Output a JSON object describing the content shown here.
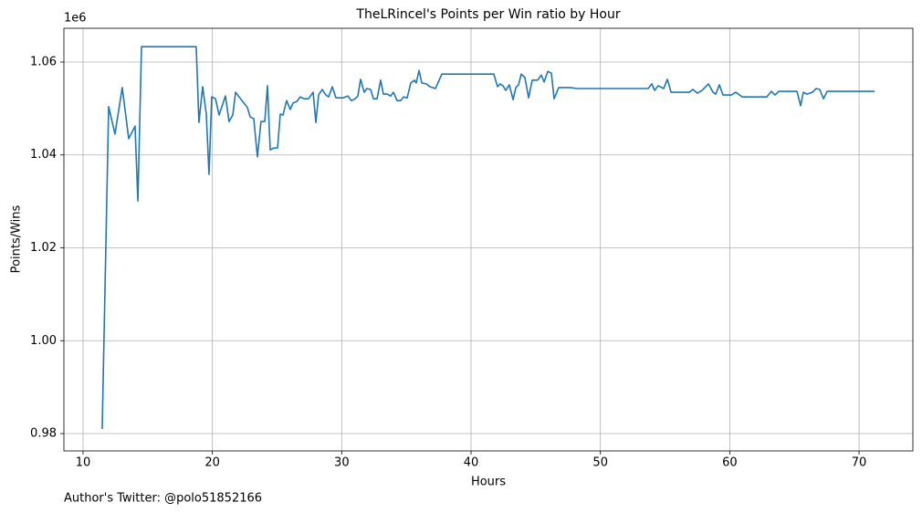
{
  "chart_data": {
    "type": "line",
    "title": "TheLRincel's Points per Win ratio by Hour",
    "x_label": "Hours",
    "y_label": "Points/Wins",
    "y_offset_label": "1e6",
    "footer": "Author's Twitter: @polo51852166",
    "color": "#1f77b4",
    "grid": true,
    "xlim": [
      8.52,
      74.16
    ],
    "ylim": [
      0.97627,
      1.06727
    ],
    "xticks": [
      10,
      20,
      30,
      40,
      50,
      60,
      70
    ],
    "yticks": [
      0.98,
      {
        "value": 1,
        "label": "1.00"
      },
      1.02,
      1.04,
      1.06
    ],
    "x": [
      11.48,
      11.98,
      12.47,
      13.03,
      13.53,
      14.02,
      14.24,
      14.52,
      18.75,
      18.96,
      19.25,
      19.53,
      19.74,
      19.95,
      20.24,
      20.52,
      21.01,
      21.29,
      21.58,
      21.79,
      22.71,
      22.92,
      23.2,
      23.48,
      23.76,
      24.05,
      24.26,
      24.47,
      24.75,
      25.04,
      25.25,
      25.46,
      25.74,
      26.02,
      26.24,
      26.52,
      26.8,
      27.08,
      27.43,
      27.79,
      28.0,
      28.21,
      28.49,
      28.78,
      28.99,
      29.27,
      29.55,
      30.12,
      30.47,
      30.75,
      31.04,
      31.25,
      31.46,
      31.74,
      31.95,
      32.24,
      32.45,
      32.73,
      33.01,
      33.22,
      33.51,
      33.79,
      34.0,
      34.28,
      34.56,
      34.78,
      35.06,
      35.34,
      35.62,
      35.76,
      35.98,
      36.19,
      36.54,
      36.82,
      37.25,
      37.74,
      41.76,
      42.05,
      42.26,
      42.47,
      42.68,
      42.96,
      43.25,
      43.46,
      43.67,
      43.88,
      44.16,
      44.45,
      44.73,
      45.15,
      45.43,
      45.65,
      45.93,
      46.21,
      46.42,
      46.78,
      47.69,
      48.19,
      53.69,
      53.98,
      54.19,
      54.47,
      54.89,
      55.18,
      55.46,
      56.87,
      57.15,
      57.5,
      57.86,
      58.35,
      58.71,
      58.92,
      59.2,
      59.48,
      60.12,
      60.47,
      60.96,
      62.87,
      63.22,
      63.5,
      63.79,
      65.2,
      65.48,
      65.69,
      65.98,
      66.4,
      66.68,
      66.96,
      67.25,
      67.53,
      71.2
    ],
    "values": [
      0.981,
      1.0504,
      1.0445,
      1.0545,
      1.0435,
      1.0462,
      1.0301,
      1.0633,
      1.0633,
      1.047,
      1.0547,
      1.0488,
      1.0358,
      1.0525,
      1.0521,
      1.0486,
      1.0527,
      1.0472,
      1.0486,
      1.0535,
      1.0502,
      1.0482,
      1.0478,
      1.0396,
      1.0472,
      1.0472,
      1.0549,
      1.0411,
      1.0415,
      1.0415,
      1.0488,
      1.0486,
      1.0517,
      1.0498,
      1.0512,
      1.0515,
      1.0525,
      1.0521,
      1.0521,
      1.0535,
      1.047,
      1.0529,
      1.0541,
      1.0529,
      1.0525,
      1.0547,
      1.0523,
      1.0523,
      1.0527,
      1.0517,
      1.0521,
      1.0527,
      1.0563,
      1.0535,
      1.0543,
      1.0541,
      1.0521,
      1.0521,
      1.0561,
      1.0531,
      1.0531,
      1.0527,
      1.0535,
      1.0517,
      1.0517,
      1.0525,
      1.0523,
      1.0555,
      1.0561,
      1.0555,
      1.0582,
      1.0555,
      1.0553,
      1.0547,
      1.0543,
      1.0574,
      1.0574,
      1.0547,
      1.0553,
      1.0549,
      1.0539,
      1.0551,
      1.0519,
      1.0545,
      1.0551,
      1.0574,
      1.0567,
      1.0523,
      1.0561,
      1.0561,
      1.0572,
      1.0557,
      1.058,
      1.0576,
      1.0521,
      1.0545,
      1.0545,
      1.0543,
      1.0543,
      1.0553,
      1.0539,
      1.0549,
      1.0543,
      1.0563,
      1.0535,
      1.0535,
      1.0541,
      1.0533,
      1.0539,
      1.0553,
      1.0535,
      1.0531,
      1.0551,
      1.0529,
      1.0529,
      1.0535,
      1.0525,
      1.0525,
      1.0537,
      1.0529,
      1.0537,
      1.0537,
      1.0506,
      1.0535,
      1.0531,
      1.0535,
      1.0543,
      1.0541,
      1.0521,
      1.0537,
      1.0537
    ]
  }
}
